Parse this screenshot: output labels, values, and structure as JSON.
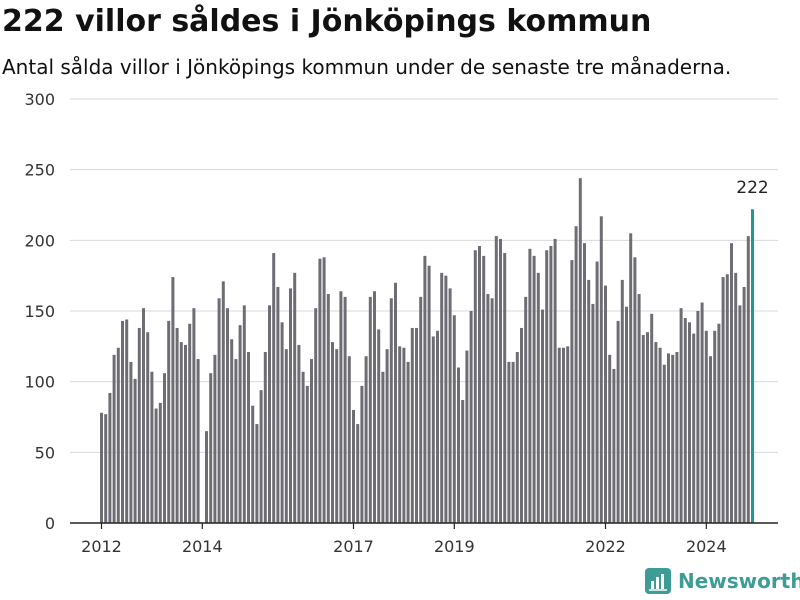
{
  "title": "222 villor såldes i Jönköpings kommun",
  "subtitle": "Antal sålda villor i Jönköpings kommun under de senaste tre månaderna.",
  "brand": {
    "name": "Newsworthy",
    "icon": "newsworthy-logo-icon"
  },
  "colors": {
    "bar": "#6e6d74",
    "highlight": "#1f9a8e",
    "grid": "#d9d9d9",
    "axis": "#222222",
    "brand": "#3d9d96"
  },
  "chart_data": {
    "type": "bar",
    "title": "222 villor såldes i Jönköpings kommun",
    "subtitle": "Antal sålda villor i Jönköpings kommun under de senaste tre månaderna.",
    "xlabel": "",
    "ylabel": "",
    "ylim": [
      0,
      300
    ],
    "yticks": [
      0,
      50,
      100,
      150,
      200,
      250,
      300
    ],
    "xticks": [
      "2012",
      "2014",
      "2017",
      "2019",
      "2022",
      "2024"
    ],
    "grid": true,
    "start": "2012-01",
    "frequency": "monthly",
    "values": [
      78,
      77,
      92,
      119,
      124,
      143,
      144,
      114,
      102,
      138,
      152,
      135,
      107,
      81,
      85,
      106,
      143,
      174,
      138,
      128,
      126,
      141,
      152,
      116,
      0,
      65,
      106,
      119,
      159,
      171,
      152,
      130,
      116,
      140,
      154,
      121,
      83,
      70,
      94,
      121,
      154,
      191,
      167,
      142,
      123,
      166,
      177,
      126,
      107,
      97,
      116,
      152,
      187,
      188,
      162,
      128,
      123,
      164,
      160,
      118,
      80,
      70,
      97,
      118,
      160,
      164,
      137,
      107,
      123,
      159,
      170,
      125,
      124,
      114,
      138,
      138,
      160,
      189,
      182,
      132,
      136,
      177,
      175,
      166,
      147,
      110,
      87,
      122,
      150,
      193,
      196,
      189,
      162,
      159,
      203,
      201,
      191,
      114,
      114,
      121,
      138,
      160,
      194,
      189,
      177,
      151,
      193,
      196,
      201,
      124,
      124,
      125,
      186,
      210,
      244,
      198,
      172,
      155,
      185,
      217,
      168,
      119,
      109,
      143,
      172,
      153,
      205,
      188,
      162,
      133,
      135,
      148,
      128,
      124,
      112,
      120,
      119,
      121,
      152,
      145,
      142,
      134,
      150,
      156,
      136,
      118,
      136,
      141,
      174,
      176,
      198,
      177,
      154,
      167,
      203,
      222
    ],
    "highlight_index": 155,
    "annotation": "222"
  }
}
